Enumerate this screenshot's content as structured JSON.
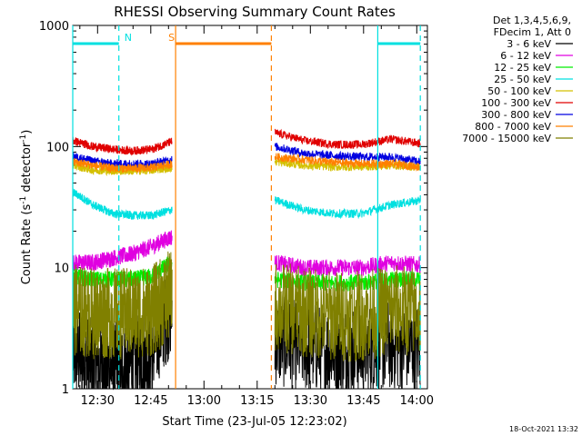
{
  "chart_data": {
    "type": "line",
    "title": "RHESSI Observing Summary Count Rates",
    "xlabel": "Start Time (23-Jul-05 12:23:02)",
    "ylabel_main": "Count Rate (s",
    "ylabel_sup1": "-1",
    "ylabel_mid": " detector",
    "ylabel_sup2": "-1",
    "ylabel_end": ")",
    "yscale": "log",
    "ylim": [
      1,
      1000
    ],
    "xlim_minutes": [
      0,
      100
    ],
    "x_unit": "minutes after 12:23:02",
    "x_ticks": [
      {
        "label": "12:30",
        "t": 7
      },
      {
        "label": "12:45",
        "t": 22
      },
      {
        "label": "13:00",
        "t": 37
      },
      {
        "label": "13:15",
        "t": 52
      },
      {
        "label": "13:30",
        "t": 67
      },
      {
        "label": "13:45",
        "t": 82
      },
      {
        "label": "14:00",
        "t": 97
      }
    ],
    "y_ticks": [
      {
        "label": "1",
        "v": 1
      },
      {
        "label": "10",
        "v": 10
      },
      {
        "label": "100",
        "v": 100
      },
      {
        "label": "1000",
        "v": 1000
      }
    ],
    "legend_header": [
      "Det 1,3,4,5,6,9,",
      "FDecim 1, Att 0"
    ],
    "data_gap_minutes": [
      28,
      57
    ],
    "series": [
      {
        "name": "3 - 6 keV",
        "color": "#000000",
        "pre": [
          2.0,
          1.6,
          1.5,
          1.6,
          2.0,
          4.5
        ],
        "post": [
          2.5,
          2.2,
          2.1,
          2.1,
          2.3,
          2.2
        ]
      },
      {
        "name": "6 - 12 keV",
        "color": "#e000e0",
        "pre": [
          11,
          11,
          12,
          13,
          15,
          18
        ],
        "post": [
          11,
          10,
          10,
          10,
          11,
          10.5
        ]
      },
      {
        "name": "12 - 25 keV",
        "color": "#00ee00",
        "pre": [
          8.5,
          8,
          8,
          8,
          8.5,
          11
        ],
        "post": [
          8,
          7.5,
          7.5,
          7.5,
          8,
          8
        ]
      },
      {
        "name": "25 - 50 keV",
        "color": "#00e0e0",
        "pre": [
          42,
          33,
          28,
          27,
          27,
          30
        ],
        "post": [
          36,
          30,
          28,
          28,
          33,
          36
        ]
      },
      {
        "name": "50 - 100 keV",
        "color": "#d4c000",
        "pre": [
          70,
          64,
          63,
          63,
          64,
          67
        ],
        "post": [
          75,
          70,
          68,
          68,
          70,
          68
        ]
      },
      {
        "name": "100 - 300 keV",
        "color": "#e00000",
        "pre": [
          112,
          100,
          95,
          92,
          95,
          110
        ],
        "post": [
          130,
          112,
          104,
          104,
          115,
          106
        ]
      },
      {
        "name": "300 - 800 keV",
        "color": "#0000e0",
        "pre": [
          83,
          76,
          72,
          72,
          72,
          78
        ],
        "post": [
          100,
          88,
          84,
          82,
          82,
          75
        ]
      },
      {
        "name": "800 - 7000 keV",
        "color": "#ff8000",
        "pre": [
          75,
          70,
          66,
          66,
          67,
          72
        ],
        "post": [
          82,
          78,
          74,
          72,
          72,
          68
        ]
      },
      {
        "name": "7000 - 15000 keV",
        "color": "#808000",
        "pre": [
          4.5,
          4.2,
          4.2,
          4.2,
          4.4,
          6
        ],
        "post": [
          4.8,
          4.3,
          4.0,
          4.0,
          4.5,
          4.3
        ]
      }
    ],
    "markers": [
      {
        "label": "N",
        "color": "#00e0e0",
        "bar": [
          0,
          13
        ],
        "dashed_at": 13,
        "solid_at": 0
      },
      {
        "label": "N",
        "color": "#00e0e0",
        "bar": [
          86,
          98
        ],
        "dashed_at": 98,
        "solid_at": 86
      },
      {
        "label": "S",
        "color": "#ff8000",
        "bar": [
          29,
          56
        ],
        "dashed_at": 56,
        "solid_at": 29
      }
    ],
    "grid": false,
    "legend_placement": "right"
  },
  "footer_timestamp": "18-Oct-2021 13:32"
}
